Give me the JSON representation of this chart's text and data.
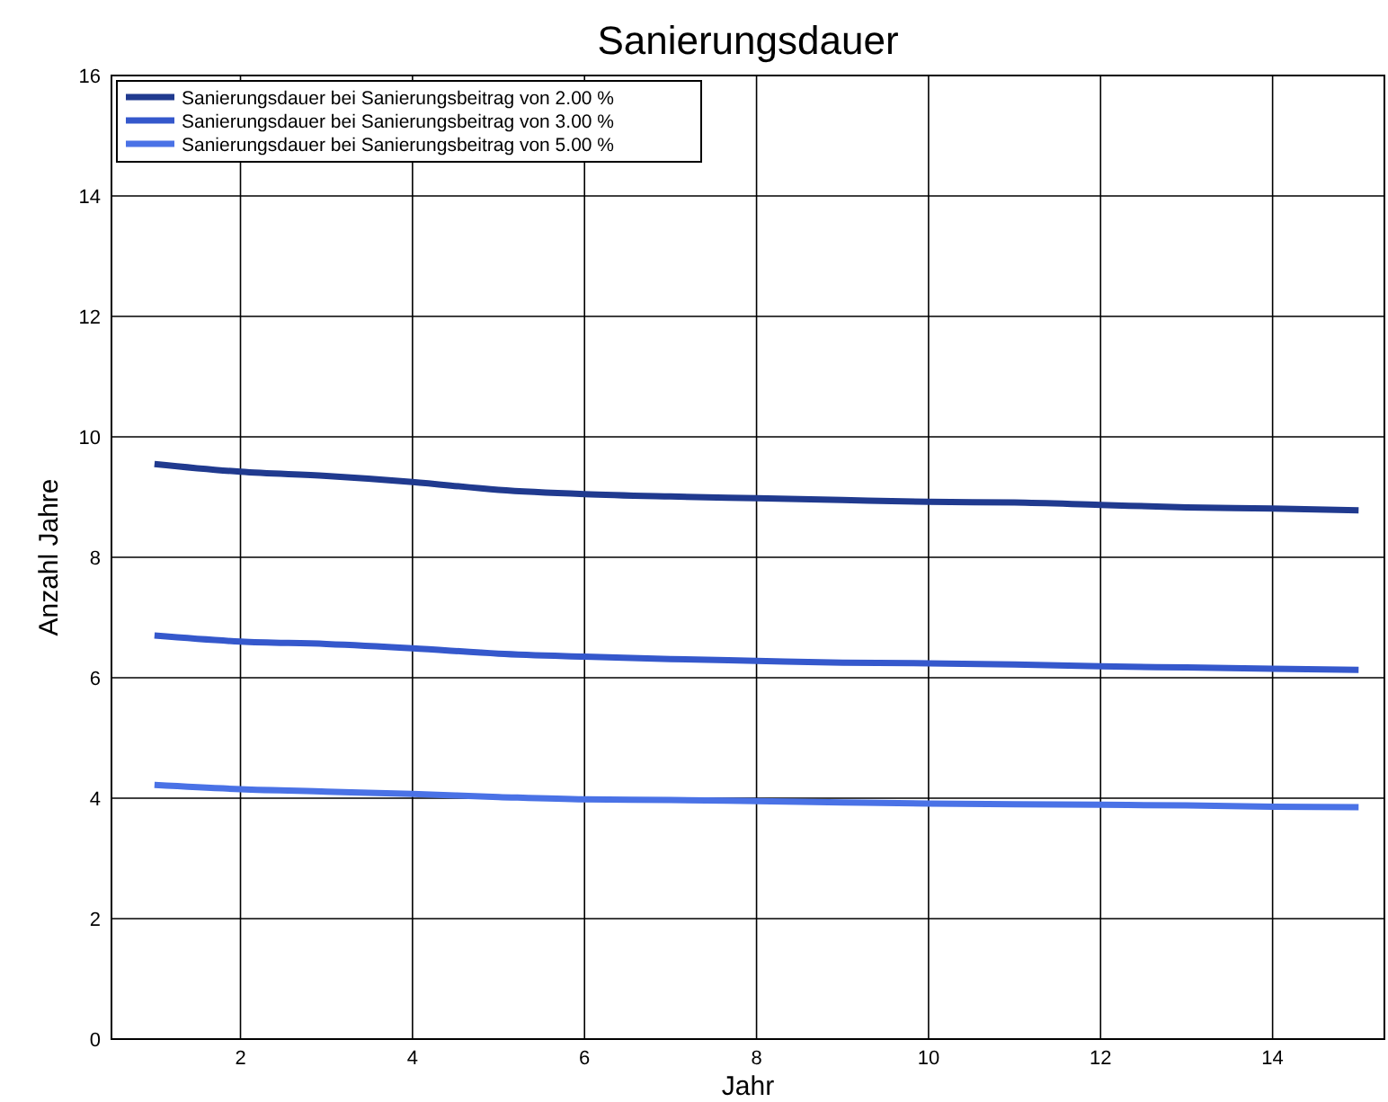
{
  "chart_data": {
    "type": "line",
    "title": "Sanierungsdauer",
    "xlabel": "Jahr",
    "ylabel": "Anzahl Jahre",
    "x": [
      1,
      2,
      3,
      4,
      5,
      6,
      7,
      8,
      9,
      10,
      11,
      12,
      13,
      14,
      15
    ],
    "xlim": [
      0.5,
      15.3
    ],
    "xticks": [
      2,
      4,
      6,
      8,
      10,
      12,
      14
    ],
    "ylim": [
      0,
      16
    ],
    "yticks": [
      0,
      2,
      4,
      6,
      8,
      10,
      12,
      14,
      16
    ],
    "grid": true,
    "legend": "top left",
    "marker": "none",
    "line_style": "solid",
    "series": [
      {
        "name": "Sanierungsdauer bei Sanierungsbeitrag von 2.00 %",
        "color": "#203a8f",
        "values": [
          9.55,
          9.42,
          9.35,
          9.25,
          9.12,
          9.05,
          9.01,
          8.98,
          8.95,
          8.92,
          8.91,
          8.87,
          8.83,
          8.81,
          8.78
        ]
      },
      {
        "name": "Sanierungsdauer bei Sanierungsbeitrag von 3.00 %",
        "color": "#3558cc",
        "values": [
          6.7,
          6.6,
          6.56,
          6.49,
          6.4,
          6.35,
          6.31,
          6.28,
          6.25,
          6.24,
          6.22,
          6.19,
          6.17,
          6.15,
          6.13
        ]
      },
      {
        "name": "Sanierungsdauer bei Sanierungsbeitrag von 5.00 %",
        "color": "#4a72e6",
        "values": [
          4.22,
          4.15,
          4.11,
          4.07,
          4.02,
          3.98,
          3.97,
          3.95,
          3.93,
          3.91,
          3.9,
          3.89,
          3.88,
          3.86,
          3.85
        ]
      }
    ]
  }
}
